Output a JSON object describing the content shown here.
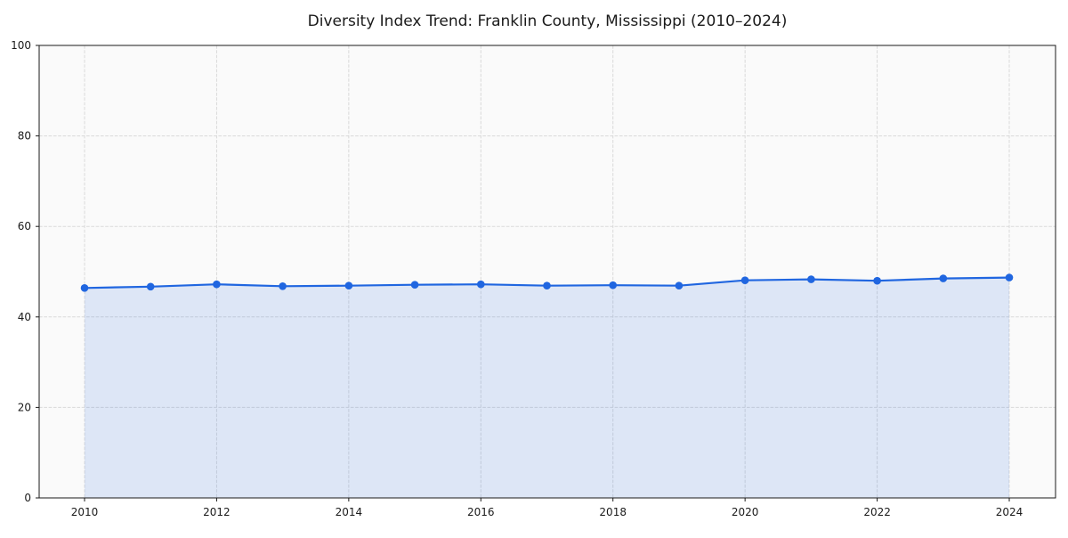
{
  "chart_data": {
    "type": "area",
    "title": "Diversity Index Trend: Franklin County, Mississippi (2010–2024)",
    "xlabel": "",
    "ylabel": "",
    "x": [
      2010,
      2011,
      2012,
      2013,
      2014,
      2015,
      2016,
      2017,
      2018,
      2019,
      2020,
      2021,
      2022,
      2023,
      2024
    ],
    "series": [
      {
        "name": "Diversity Index",
        "values": [
          46.4,
          46.7,
          47.2,
          46.8,
          46.9,
          47.1,
          47.2,
          46.9,
          47.0,
          46.9,
          48.1,
          48.3,
          48.0,
          48.5,
          48.7
        ]
      }
    ],
    "ylim": [
      0,
      100
    ],
    "yticks": [
      0,
      20,
      40,
      60,
      80,
      100
    ],
    "xticks": [
      2010,
      2012,
      2014,
      2016,
      2018,
      2020,
      2022,
      2024
    ],
    "grid": true,
    "grid_style": "dashed",
    "legend": "none",
    "marker": "circle",
    "colors": {
      "line": "#2066e0",
      "marker": "#2066e0",
      "fill": "rgba(32, 102, 224, 0.13)",
      "grid": "#d9d9d9",
      "plot_bg": "#fafafa",
      "figure_bg": "#ffffff",
      "spine": "#1a1a1a",
      "text": "#1a1a1a"
    }
  }
}
